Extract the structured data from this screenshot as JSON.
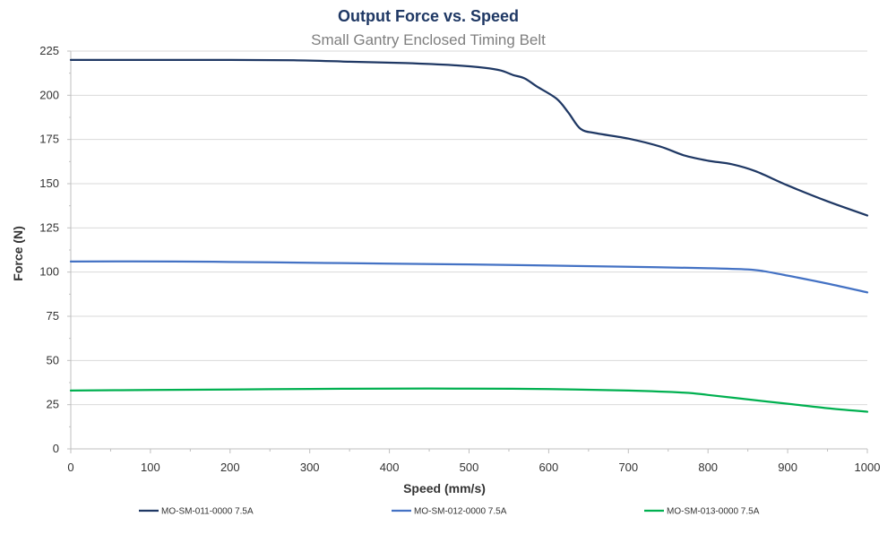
{
  "chart_data": {
    "type": "line",
    "title": "Output Force vs. Speed",
    "subtitle": "Small Gantry Enclosed Timing Belt",
    "xlabel": "Speed (mm/s)",
    "ylabel": "Force (N)",
    "xlim": [
      0,
      1000
    ],
    "ylim": [
      0,
      225
    ],
    "x_ticks": [
      0,
      100,
      200,
      300,
      400,
      500,
      600,
      700,
      800,
      900,
      1000
    ],
    "y_ticks": [
      0,
      25,
      50,
      75,
      100,
      125,
      150,
      175,
      200,
      225
    ],
    "grid": "horizontal",
    "legend_position": "bottom",
    "series": [
      {
        "name": "MO-SM-011-0000 7.5A",
        "color": "#1f3864",
        "points": [
          [
            0,
            220
          ],
          [
            100,
            220
          ],
          [
            200,
            220
          ],
          [
            280,
            219.8
          ],
          [
            350,
            219
          ],
          [
            420,
            218.2
          ],
          [
            480,
            217
          ],
          [
            520,
            215.5
          ],
          [
            540,
            214
          ],
          [
            555,
            211.5
          ],
          [
            570,
            209.5
          ],
          [
            585,
            205
          ],
          [
            610,
            198
          ],
          [
            625,
            190
          ],
          [
            640,
            181
          ],
          [
            660,
            178.5
          ],
          [
            700,
            175.5
          ],
          [
            740,
            171
          ],
          [
            770,
            166
          ],
          [
            800,
            163
          ],
          [
            830,
            161
          ],
          [
            860,
            157
          ],
          [
            900,
            149
          ],
          [
            950,
            140
          ],
          [
            1000,
            132
          ]
        ]
      },
      {
        "name": "MO-SM-012-0000 7.5A",
        "color": "#4472c4",
        "points": [
          [
            0,
            106
          ],
          [
            130,
            106
          ],
          [
            250,
            105.5
          ],
          [
            400,
            104.8
          ],
          [
            500,
            104.3
          ],
          [
            600,
            103.7
          ],
          [
            700,
            103
          ],
          [
            800,
            102.2
          ],
          [
            850,
            101.5
          ],
          [
            870,
            100.5
          ],
          [
            900,
            98
          ],
          [
            950,
            93.5
          ],
          [
            1000,
            88.5
          ]
        ]
      },
      {
        "name": "MO-SM-013-0000 7.5A",
        "color": "#00b050",
        "points": [
          [
            0,
            33
          ],
          [
            100,
            33.3
          ],
          [
            200,
            33.6
          ],
          [
            300,
            33.9
          ],
          [
            400,
            34.1
          ],
          [
            500,
            34.1
          ],
          [
            600,
            33.8
          ],
          [
            700,
            33
          ],
          [
            770,
            31.8
          ],
          [
            800,
            30.5
          ],
          [
            850,
            28
          ],
          [
            900,
            25.5
          ],
          [
            950,
            23
          ],
          [
            1000,
            21
          ]
        ]
      }
    ]
  }
}
